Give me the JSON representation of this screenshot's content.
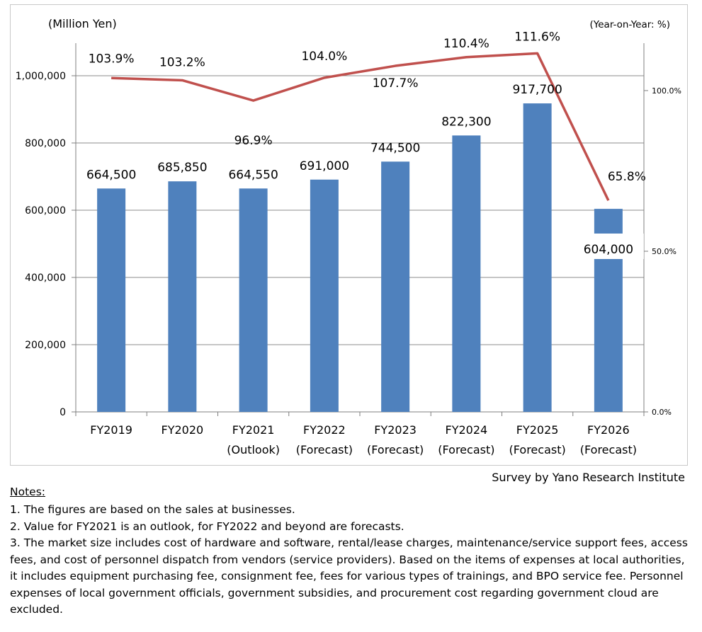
{
  "chart_data": {
    "type": "bar+line",
    "left_axis_label": "(Million Yen)",
    "right_axis_label": "(Year-on-Year: %)",
    "categories": [
      [
        "FY2019",
        ""
      ],
      [
        "FY2020",
        ""
      ],
      [
        "FY2021",
        "(Outlook)"
      ],
      [
        "FY2022",
        "(Forecast)"
      ],
      [
        "FY2023",
        "(Forecast)"
      ],
      [
        "FY2024",
        "(Forecast)"
      ],
      [
        "FY2025",
        "(Forecast)"
      ],
      [
        "FY2026",
        "(Forecast)"
      ]
    ],
    "bars": {
      "values": [
        664500,
        685850,
        664550,
        691000,
        744500,
        822300,
        917700,
        604000
      ],
      "labels": [
        "664,500",
        "685,850",
        "664,550",
        "691,000",
        "744,500",
        "822,300",
        "917,700",
        "604,000"
      ],
      "color": "#4f81bd"
    },
    "line": {
      "values": [
        103.9,
        103.2,
        96.9,
        104.0,
        107.7,
        110.4,
        111.6,
        65.8
      ],
      "labels": [
        "103.9%",
        "103.2%",
        "96.9%",
        "104.0%",
        "107.7%",
        "110.4%",
        "111.6%",
        "65.8%"
      ],
      "color": "#c0504d"
    },
    "left_axis": {
      "min": 0,
      "max": 1000000,
      "ticks": [
        0,
        200000,
        400000,
        600000,
        800000,
        1000000
      ],
      "tick_labels": [
        "0",
        "200,000",
        "400,000",
        "600,000",
        "800,000",
        "1,000,000"
      ]
    },
    "right_axis": {
      "min": 0,
      "max": 100,
      "ticks": [
        0,
        50,
        100
      ],
      "tick_labels": [
        "0.0%",
        "50.0%",
        "100.0%"
      ]
    },
    "grid": true
  },
  "credit": "Survey by Yano Research Institute",
  "notes": {
    "heading": "Notes:",
    "items": [
      "1. The figures are based on the sales at businesses.",
      "2. Value for FY2021 is an outlook, for FY2022 and beyond are forecasts.",
      "3. The market size includes cost of hardware and software, rental/lease charges, maintenance/service support fees, access fees, and cost of personnel dispatch from vendors (service providers). Based on the items of expenses at local authorities, it includes equipment purchasing fee, consignment fee, fees for various types of trainings, and BPO service fee. Personnel expenses of local government officials, government subsidies, and procurement cost regarding government cloud are excluded."
    ]
  }
}
